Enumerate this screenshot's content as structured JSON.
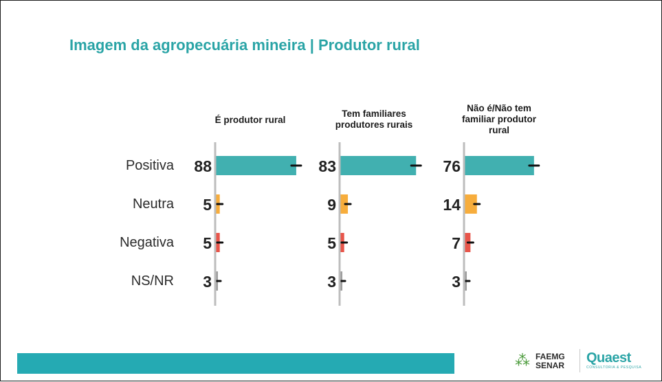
{
  "title": "Imagem da agropecuária mineira | Produtor rural",
  "chart_data": {
    "type": "bar",
    "orientation": "horizontal",
    "categories": [
      "Positiva",
      "Neutra",
      "Negativa",
      "NS/NR"
    ],
    "series": [
      {
        "name": "É produtor rural",
        "values": [
          88,
          5,
          5,
          3
        ]
      },
      {
        "name": "Tem familiares produtores rurais",
        "values": [
          83,
          9,
          5,
          3
        ]
      },
      {
        "name": "Não é/Não tem familiar produtor rural",
        "values": [
          76,
          14,
          7,
          3
        ]
      }
    ],
    "category_colors": [
      "#41b0b0",
      "#f7ad3c",
      "#e8554a",
      "#9e9e9e"
    ],
    "error_bars": true,
    "xlim": [
      0,
      100
    ]
  },
  "logos": {
    "faemg_line1": "FAEMG",
    "faemg_line2": "SENAR",
    "quaest": "Quaest",
    "quaest_tagline": "CONSULTORIA & PESQUISA"
  }
}
